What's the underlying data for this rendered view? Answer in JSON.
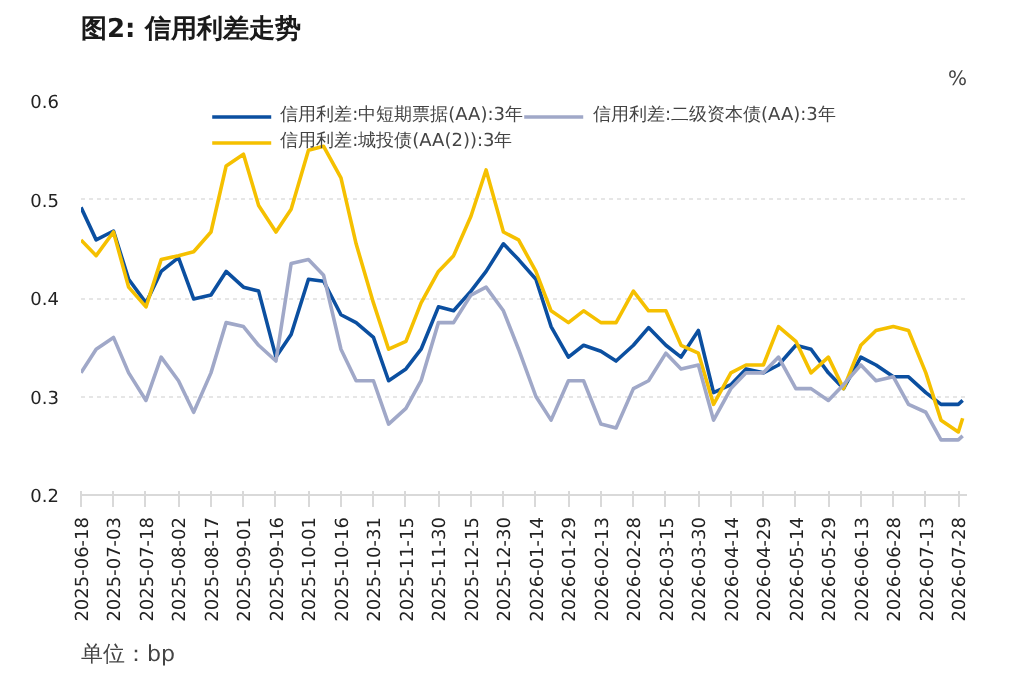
{
  "chart_data": {
    "type": "line",
    "title": "图2: 信用利差走势",
    "ylabel": "%",
    "annotations": [
      "单位：bp"
    ],
    "x": [
      "2025-06-18",
      "2025-06-25",
      "2025-07-03",
      "2025-07-10",
      "2025-07-18",
      "2025-07-25",
      "2025-08-02",
      "2025-08-09",
      "2025-08-17",
      "2025-08-24",
      "2025-09-01",
      "2025-09-08",
      "2025-09-16",
      "2025-09-23",
      "2025-10-01",
      "2025-10-08",
      "2025-10-16",
      "2025-10-23",
      "2025-10-31",
      "2025-11-07",
      "2025-11-15",
      "2025-11-22",
      "2025-11-30",
      "2025-12-07",
      "2025-12-15",
      "2025-12-22",
      "2025-12-30",
      "2026-01-06",
      "2026-01-14",
      "2026-01-21",
      "2026-01-29",
      "2026-02-05",
      "2026-02-13",
      "2026-02-20",
      "2026-02-28",
      "2026-03-07",
      "2026-03-15",
      "2026-03-22",
      "2026-03-30",
      "2026-04-06",
      "2026-04-14",
      "2026-04-21",
      "2026-04-29",
      "2026-05-06",
      "2026-05-14",
      "2026-05-21",
      "2026-05-29",
      "2026-06-05",
      "2026-06-13",
      "2026-06-20",
      "2026-06-28",
      "2026-07-05",
      "2026-07-13",
      "2026-07-20",
      "2026-07-28",
      "2026-07-30"
    ],
    "series": [
      {
        "name": "信用利差:中短期票据(AA):3年",
        "color": "#0b4fa0",
        "values": [
          0.492,
          0.459,
          0.468,
          0.419,
          0.395,
          0.427,
          0.441,
          0.399,
          0.403,
          0.427,
          0.411,
          0.407,
          0.34,
          0.363,
          0.419,
          0.417,
          0.383,
          0.375,
          0.36,
          0.316,
          0.328,
          0.348,
          0.391,
          0.387,
          0.407,
          0.427,
          0.455,
          0.439,
          0.419,
          0.371,
          0.34,
          0.352,
          0.346,
          0.336,
          0.352,
          0.37,
          0.352,
          0.34,
          0.367,
          0.304,
          0.312,
          0.328,
          0.324,
          0.332,
          0.352,
          0.348,
          0.324,
          0.308,
          0.34,
          0.332,
          0.32,
          0.32,
          0.304,
          0.292,
          0.292,
          0.296
        ]
      },
      {
        "name": "信用利差:城投债(AA(2)):3年",
        "color": "#f5c000",
        "values": [
          0.459,
          0.443,
          0.467,
          0.411,
          0.391,
          0.439,
          0.443,
          0.447,
          0.467,
          0.534,
          0.546,
          0.494,
          0.467,
          0.49,
          0.55,
          0.554,
          0.522,
          0.455,
          0.395,
          0.348,
          0.356,
          0.395,
          0.427,
          0.443,
          0.483,
          0.53,
          0.467,
          0.459,
          0.427,
          0.387,
          0.375,
          0.387,
          0.375,
          0.375,
          0.407,
          0.387,
          0.387,
          0.352,
          0.344,
          0.292,
          0.324,
          0.332,
          0.332,
          0.371,
          0.356,
          0.324,
          0.34,
          0.308,
          0.352,
          0.367,
          0.371,
          0.367,
          0.324,
          0.276,
          0.264,
          0.278
        ]
      },
      {
        "name": "信用利差:二级资本债(AA):3年",
        "color": "#a0a8c8",
        "values": [
          0.324,
          0.348,
          0.36,
          0.324,
          0.296,
          0.34,
          0.316,
          0.284,
          0.324,
          0.375,
          0.371,
          0.352,
          0.336,
          0.435,
          0.439,
          0.423,
          0.348,
          0.316,
          0.316,
          0.272,
          0.288,
          0.316,
          0.375,
          0.375,
          0.403,
          0.411,
          0.387,
          0.348,
          0.3,
          0.276,
          0.316,
          0.316,
          0.272,
          0.268,
          0.308,
          0.316,
          0.344,
          0.328,
          0.332,
          0.276,
          0.308,
          0.324,
          0.324,
          0.34,
          0.308,
          0.308,
          0.296,
          0.312,
          0.332,
          0.316,
          0.32,
          0.292,
          0.284,
          0.256,
          0.256,
          0.26
        ]
      }
    ],
    "xlim": [
      "2025-06-18",
      "2026-08-01"
    ],
    "xticks": [
      "2025-06-18",
      "2025-07-03",
      "2025-07-18",
      "2025-08-02",
      "2025-08-17",
      "2025-09-01",
      "2025-09-16",
      "2025-10-01",
      "2025-10-16",
      "2025-10-31",
      "2025-11-15",
      "2025-11-30",
      "2025-12-15",
      "2025-12-30",
      "2026-01-14",
      "2026-01-29",
      "2026-02-13",
      "2026-02-28",
      "2026-03-15",
      "2026-03-30",
      "2026-04-14",
      "2026-04-29",
      "2026-05-14",
      "2026-05-29",
      "2026-06-13",
      "2026-06-28",
      "2026-07-13",
      "2026-07-28"
    ],
    "ylim": [
      0.2,
      0.6
    ],
    "yticks": [
      0.2,
      0.3,
      0.4,
      0.5,
      0.6
    ],
    "grid": "y",
    "legend": "top",
    "marker": "none",
    "line_style": "solid"
  }
}
